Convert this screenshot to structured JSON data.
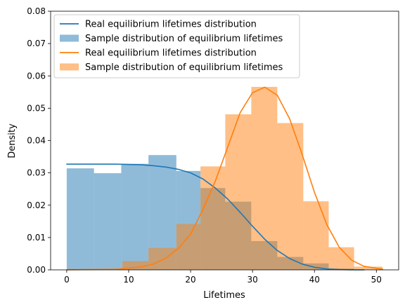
{
  "chart_data": {
    "type": "histogram-with-density",
    "xlabel": "Lifetimes",
    "ylabel": "Density",
    "xlim": [
      -2.6,
      53.6
    ],
    "ylim": [
      0,
      0.08
    ],
    "x_ticks": [
      0,
      10,
      20,
      30,
      40,
      50
    ],
    "y_ticks": [
      0.0,
      0.01,
      0.02,
      0.03,
      0.04,
      0.05,
      0.06,
      0.07,
      0.08
    ],
    "x_tick_labels": [
      "0",
      "10",
      "20",
      "30",
      "40",
      "50"
    ],
    "y_tick_labels": [
      "0.00",
      "0.01",
      "0.02",
      "0.03",
      "0.04",
      "0.05",
      "0.06",
      "0.07",
      "0.08"
    ],
    "grid": false,
    "legend_position": "top-left",
    "colors": {
      "blue": "#1f77b4",
      "orange": "#ff7f0e"
    },
    "histograms": [
      {
        "name": "Sample distribution of equilibrium lifetimes",
        "color": "#1f77b4",
        "opacity": 0.5,
        "bins": [
          {
            "x0": 0.0,
            "x1": 4.4,
            "y": 0.0314
          },
          {
            "x0": 4.4,
            "x1": 8.8,
            "y": 0.0299
          },
          {
            "x0": 8.8,
            "x1": 13.2,
            "y": 0.0328
          },
          {
            "x0": 13.2,
            "x1": 17.7,
            "y": 0.0355
          },
          {
            "x0": 17.7,
            "x1": 21.6,
            "y": 0.0306
          },
          {
            "x0": 21.6,
            "x1": 25.6,
            "y": 0.0253
          },
          {
            "x0": 25.6,
            "x1": 29.8,
            "y": 0.0211
          },
          {
            "x0": 29.8,
            "x1": 34.0,
            "y": 0.0089
          },
          {
            "x0": 34.0,
            "x1": 38.2,
            "y": 0.004
          },
          {
            "x0": 38.2,
            "x1": 42.3,
            "y": 0.002
          },
          {
            "x0": 42.3,
            "x1": 46.4,
            "y": 0.0004
          }
        ]
      },
      {
        "name": "Sample distribution of equilibrium lifetimes",
        "color": "#ff7f0e",
        "opacity": 0.5,
        "bins": [
          {
            "x0": 0.0,
            "x1": 9.0,
            "y": 0.0003
          },
          {
            "x0": 9.0,
            "x1": 13.2,
            "y": 0.0027
          },
          {
            "x0": 13.2,
            "x1": 17.7,
            "y": 0.0068
          },
          {
            "x0": 17.7,
            "x1": 21.6,
            "y": 0.0142
          },
          {
            "x0": 21.6,
            "x1": 25.6,
            "y": 0.032
          },
          {
            "x0": 25.6,
            "x1": 29.8,
            "y": 0.0481
          },
          {
            "x0": 29.8,
            "x1": 34.0,
            "y": 0.0566
          },
          {
            "x0": 34.0,
            "x1": 38.2,
            "y": 0.0454
          },
          {
            "x0": 38.2,
            "x1": 42.3,
            "y": 0.0212
          },
          {
            "x0": 42.3,
            "x1": 46.4,
            "y": 0.007
          },
          {
            "x0": 46.4,
            "x1": 51.0,
            "y": 0.001
          }
        ]
      }
    ],
    "curves": [
      {
        "name": "Real equilibrium lifetimes distribution",
        "color": "#1f77b4",
        "x": [
          0,
          4,
          8,
          12,
          14,
          16,
          18,
          20,
          22,
          24,
          26,
          28,
          30,
          32,
          34,
          36,
          38,
          40,
          42,
          44,
          46,
          48
        ],
        "y": [
          0.0327,
          0.0327,
          0.0327,
          0.0325,
          0.0322,
          0.0318,
          0.0311,
          0.03,
          0.0281,
          0.0253,
          0.0219,
          0.0178,
          0.0135,
          0.0094,
          0.006,
          0.0035,
          0.0018,
          0.0008,
          0.0003,
          0.0001,
          0.0,
          0.0
        ]
      },
      {
        "name": "Real equilibrium lifetimes distribution",
        "color": "#ff7f0e",
        "x": [
          0,
          8,
          12,
          14,
          16,
          18,
          20,
          22,
          24,
          26,
          28,
          30,
          32,
          34,
          36,
          38,
          40,
          42,
          44,
          46,
          48,
          51
        ],
        "y": [
          0.0,
          0.0002,
          0.0009,
          0.0018,
          0.0036,
          0.0066,
          0.011,
          0.0187,
          0.0275,
          0.038,
          0.0486,
          0.0548,
          0.0565,
          0.054,
          0.0467,
          0.0358,
          0.024,
          0.014,
          0.007,
          0.003,
          0.0011,
          0.0002
        ]
      }
    ],
    "legend": [
      {
        "kind": "line",
        "label": "Real equilibrium lifetimes distribution",
        "color": "#1f77b4"
      },
      {
        "kind": "patch",
        "label": "Sample distribution of equilibrium lifetimes",
        "color": "#1f77b4"
      },
      {
        "kind": "line",
        "label": "Real equilibrium lifetimes distribution",
        "color": "#ff7f0e"
      },
      {
        "kind": "patch",
        "label": "Sample distribution of equilibrium lifetimes",
        "color": "#ff7f0e"
      }
    ]
  }
}
